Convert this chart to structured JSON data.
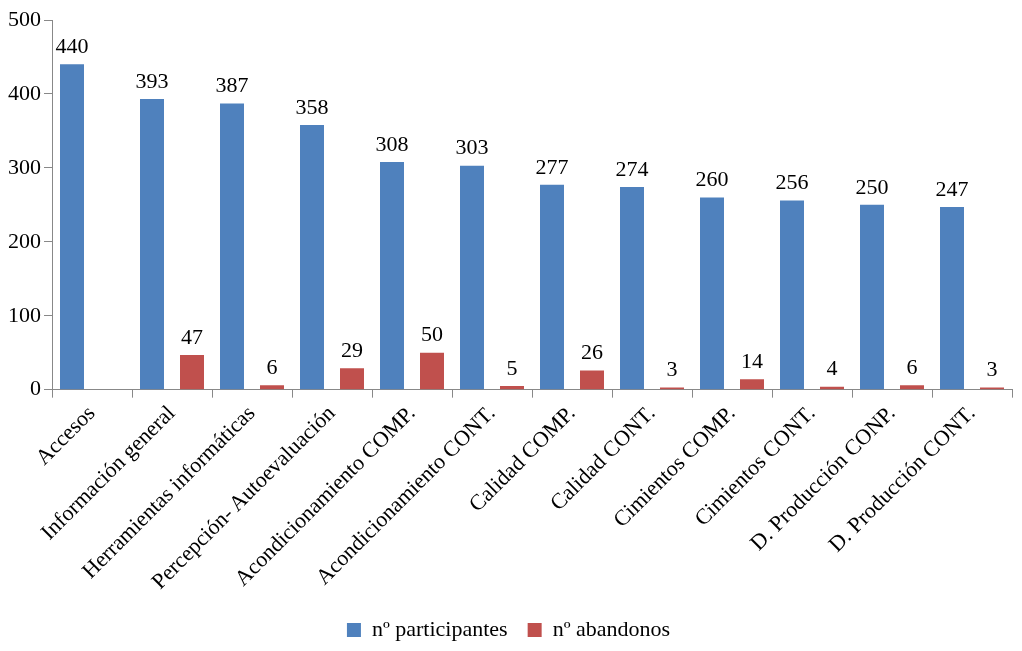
{
  "chart_data": {
    "type": "bar",
    "categories": [
      "Accesos",
      "Información general",
      "Herramientas informáticas",
      "Percepción- Autoevaluación",
      "Acondicionamiento COMP.",
      "Acondicionamiento CONT.",
      "Calidad COMP.",
      "Calidad CONT.",
      "Cimientos COMP.",
      "Cimientos CONT.",
      "D. Producción CONP.",
      "D. Producción CONT."
    ],
    "series": [
      {
        "name": "nº participantes",
        "color": "#4f81bd",
        "values": [
          440,
          393,
          387,
          358,
          308,
          303,
          277,
          274,
          260,
          256,
          250,
          247
        ]
      },
      {
        "name": "nº abandonos",
        "color": "#c0504d",
        "values": [
          null,
          47,
          6,
          29,
          50,
          5,
          26,
          3,
          14,
          4,
          6,
          3
        ]
      }
    ],
    "ylim": [
      0,
      500
    ],
    "yticks": [
      0,
      100,
      200,
      300,
      400,
      500
    ],
    "grid": false,
    "legend": "bottom",
    "data_labels": true
  }
}
